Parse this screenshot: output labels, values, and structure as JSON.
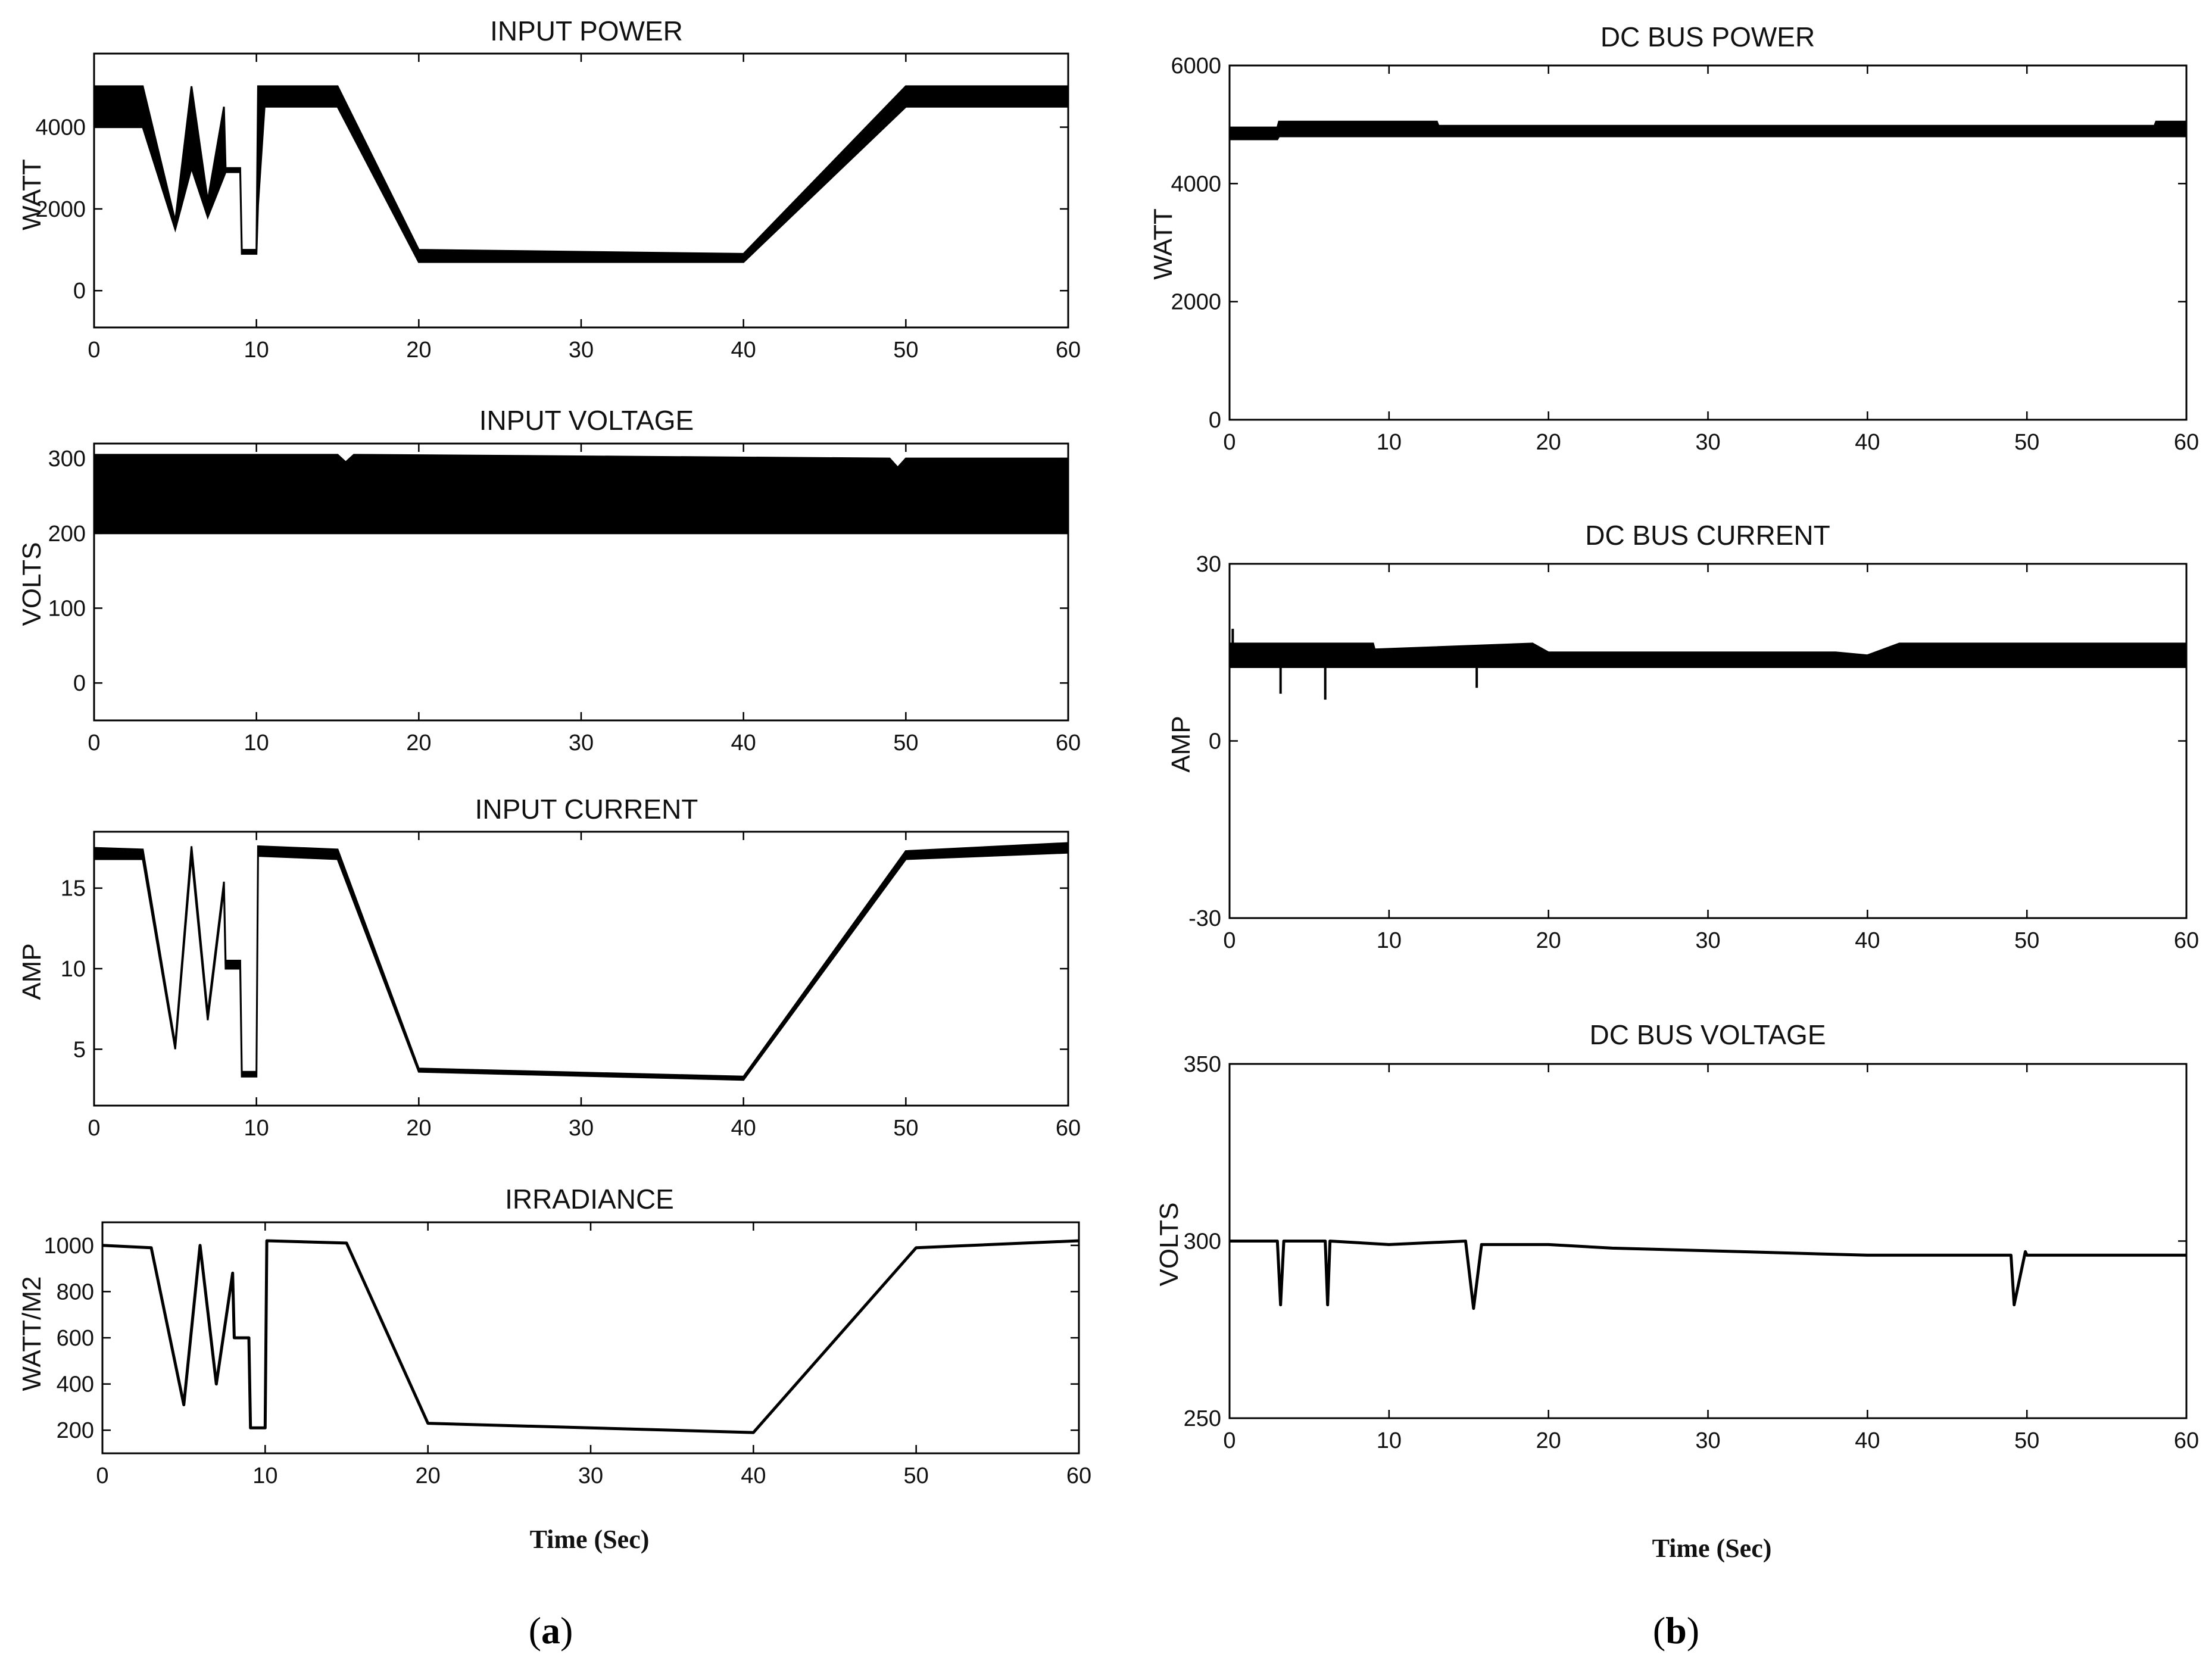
{
  "figure": {
    "labels": [
      "a",
      "b"
    ]
  },
  "chart_data": [
    {
      "id": "input-power",
      "type": "area",
      "title": "INPUT POWER",
      "ylabel": "WATT",
      "xlabel": "",
      "xlim": [
        0,
        60
      ],
      "ylim": [
        -900,
        5800
      ],
      "xticks": [
        "0",
        "10",
        "20",
        "30",
        "40",
        "50",
        "60"
      ],
      "yticks": [
        "0",
        "2000",
        "4000"
      ],
      "series": [
        {
          "x": [
            0,
            3,
            5,
            6,
            7,
            8,
            8.1,
            9,
            9.1,
            10,
            10.1,
            10.5,
            15,
            20,
            40,
            50,
            60
          ],
          "lo": [
            4000,
            4000,
            1500,
            3000,
            1800,
            2800,
            2900,
            2900,
            900,
            900,
            2100,
            4500,
            4500,
            700,
            700,
            4500,
            4500
          ],
          "hi": [
            5000,
            5000,
            1700,
            5000,
            2200,
            4500,
            3000,
            3000,
            1000,
            1000,
            5000,
            5000,
            5000,
            1000,
            900,
            5000,
            5000
          ]
        }
      ]
    },
    {
      "id": "input-voltage",
      "type": "area",
      "title": "INPUT VOLTAGE",
      "ylabel": "VOLTS",
      "xlabel": "",
      "xlim": [
        0,
        60
      ],
      "ylim": [
        -50,
        320
      ],
      "xticks": [
        "0",
        "10",
        "20",
        "30",
        "40",
        "50",
        "60"
      ],
      "yticks": [
        "0",
        "100",
        "200",
        "300"
      ],
      "series": [
        {
          "x": [
            0,
            15,
            15.5,
            16,
            49,
            49.5,
            50,
            60
          ],
          "lo": [
            200,
            200,
            200,
            200,
            200,
            200,
            200,
            200
          ],
          "hi": [
            305,
            305,
            295,
            305,
            300,
            288,
            300,
            300
          ]
        }
      ]
    },
    {
      "id": "input-current",
      "type": "area",
      "title": "INPUT CURRENT",
      "ylabel": "AMP",
      "xlabel": "",
      "xlim": [
        0,
        60
      ],
      "ylim": [
        1.5,
        18.5
      ],
      "xticks": [
        "0",
        "10",
        "20",
        "30",
        "40",
        "50",
        "60"
      ],
      "yticks": [
        "5",
        "10",
        "15"
      ],
      "series": [
        {
          "x": [
            0,
            3,
            5,
            6,
            7,
            8,
            8.1,
            9,
            9.1,
            10,
            10.1,
            15,
            20,
            40,
            50,
            60
          ],
          "lo": [
            16.8,
            16.8,
            5,
            17,
            6.8,
            15,
            10,
            10,
            3.3,
            3.3,
            17,
            16.8,
            3.6,
            3.1,
            16.8,
            17.2
          ],
          "hi": [
            17.5,
            17.4,
            5.3,
            17.6,
            7.2,
            15.4,
            10.5,
            10.5,
            3.6,
            3.6,
            17.6,
            17.4,
            3.8,
            3.3,
            17.3,
            17.8
          ]
        }
      ]
    },
    {
      "id": "irradiance",
      "type": "line",
      "title": "IRRADIANCE",
      "ylabel": "WATT/M2",
      "xlabel": "Time (Sec)",
      "xlim": [
        0,
        60
      ],
      "ylim": [
        100,
        1100
      ],
      "xticks": [
        "0",
        "10",
        "20",
        "30",
        "40",
        "50",
        "60"
      ],
      "yticks": [
        "200",
        "400",
        "600",
        "800",
        "1000"
      ],
      "series": [
        {
          "x": [
            0,
            3,
            5,
            6,
            7,
            8,
            8.1,
            9,
            9.1,
            10,
            10.1,
            15,
            20,
            40,
            50,
            60
          ],
          "y": [
            1000,
            990,
            310,
            1000,
            400,
            880,
            600,
            600,
            210,
            210,
            1020,
            1010,
            230,
            190,
            990,
            1020
          ]
        }
      ]
    },
    {
      "id": "dc-bus-power",
      "type": "area",
      "title": "DC BUS POWER",
      "ylabel": "WATT",
      "xlabel": "",
      "xlim": [
        0,
        60
      ],
      "ylim": [
        0,
        6000
      ],
      "xticks": [
        "0",
        "10",
        "20",
        "30",
        "40",
        "50",
        "60"
      ],
      "yticks": [
        "0",
        "2000",
        "4000",
        "6000"
      ],
      "series": [
        {
          "x": [
            0,
            3,
            3.1,
            13,
            13.1,
            58,
            58.1,
            60
          ],
          "lo": [
            4750,
            4750,
            4800,
            4800,
            4800,
            4800,
            4800,
            4800
          ],
          "hi": [
            4950,
            4950,
            5050,
            5050,
            4980,
            4980,
            5050,
            5050
          ]
        }
      ]
    },
    {
      "id": "dc-bus-current",
      "type": "area",
      "title": "DC BUS CURRENT",
      "ylabel": "AMP",
      "xlabel": "",
      "xlim": [
        0,
        60
      ],
      "ylim": [
        -30,
        30
      ],
      "xticks": [
        "0",
        "10",
        "20",
        "30",
        "40",
        "50",
        "60"
      ],
      "yticks": [
        "-30",
        "0",
        "30"
      ],
      "series": [
        {
          "x": [
            0,
            9,
            9.1,
            19,
            20,
            38,
            40,
            42,
            60
          ],
          "lo": [
            12.5,
            12.5,
            12.5,
            12.5,
            12.5,
            12.5,
            12.5,
            12.5,
            12.5
          ],
          "hi": [
            16.5,
            16.5,
            15.5,
            16.5,
            15,
            15,
            14.5,
            16.5,
            16.5
          ]
        }
      ],
      "spikes": [
        {
          "x": 0.2,
          "y": 19
        },
        {
          "x": 3.2,
          "y": 8
        },
        {
          "x": 6,
          "y": 7
        },
        {
          "x": 15.5,
          "y": 9
        }
      ]
    },
    {
      "id": "dc-bus-voltage",
      "type": "line",
      "title": "DC BUS VOLTAGE",
      "ylabel": "VOLTS",
      "xlabel": "Time (Sec)",
      "xlim": [
        0,
        60
      ],
      "ylim": [
        250,
        350
      ],
      "xticks": [
        "0",
        "10",
        "20",
        "30",
        "40",
        "50",
        "60"
      ],
      "yticks": [
        "250",
        "300",
        "350"
      ],
      "series": [
        {
          "x": [
            0,
            3,
            3.2,
            3.4,
            6,
            6.15,
            6.3,
            10,
            14.8,
            15.3,
            15.8,
            20,
            24,
            32,
            40,
            49,
            49.2,
            49.9,
            50,
            60
          ],
          "y": [
            300,
            300,
            282,
            300,
            300,
            282,
            300,
            299,
            300,
            281,
            299,
            299,
            298,
            297,
            296,
            296,
            282,
            297,
            296,
            296
          ]
        }
      ]
    }
  ]
}
